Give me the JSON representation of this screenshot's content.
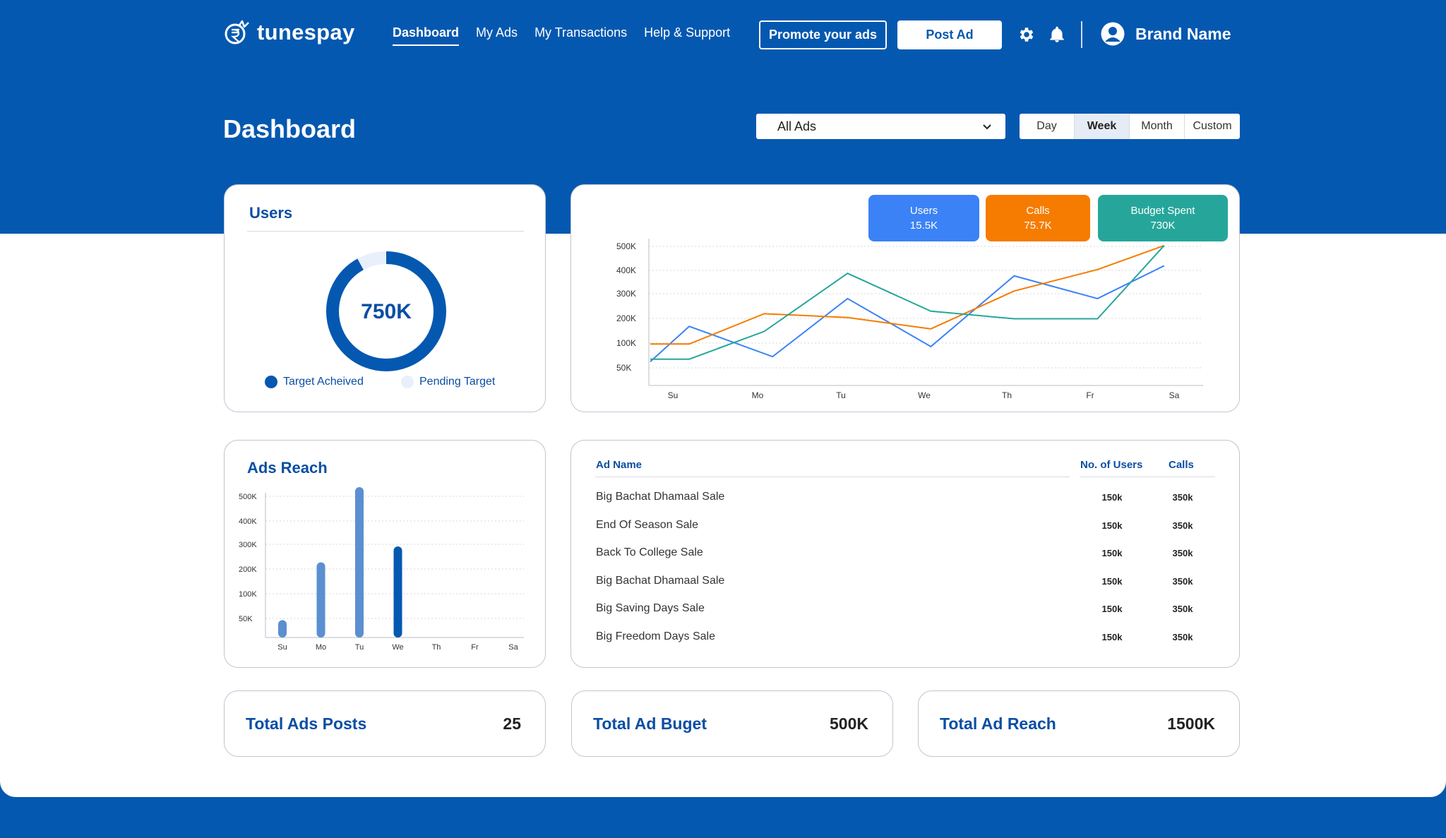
{
  "nav": {
    "logo_text": "tunespay",
    "links": [
      "Dashboard",
      "My Ads",
      "My Transactions",
      "Help & Support"
    ],
    "promote_label": "Promote your ads",
    "post_label": "Post Ad",
    "brand_name": "Brand Name"
  },
  "header": {
    "title": "Dashboard",
    "select_value": "All Ads",
    "ranges": [
      "Day",
      "Week",
      "Month",
      "Custom"
    ],
    "active_range": "Week"
  },
  "users_card": {
    "title": "Users",
    "center_value": "750K",
    "achieved_fraction": 0.92,
    "legend_achieved": "Target Acheived",
    "legend_pending": "Pending Target",
    "colors": {
      "achieved": "#0558b0",
      "pending": "#e8f0fb"
    }
  },
  "pills": [
    {
      "label": "Users",
      "value": "15.5K",
      "color": "#3b82f6"
    },
    {
      "label": "Calls",
      "value": "75.7K",
      "color": "#f57c00"
    },
    {
      "label": "Budget Spent",
      "value": "730K",
      "color": "#26a69a"
    }
  ],
  "chart_data": [
    {
      "type": "line",
      "categories": [
        "Su",
        "Mo",
        "Tu",
        "We",
        "Th",
        "Fr",
        "Sa"
      ],
      "y_ticks": [
        "500K",
        "400K",
        "300K",
        "200K",
        "100K",
        "50K"
      ],
      "grid": true,
      "series": [
        {
          "name": "Users",
          "color": "#3b82f6",
          "values": [
            [
              0,
              40
            ],
            [
              0.4,
              180
            ],
            [
              1.4,
              60
            ],
            [
              2.3,
              290
            ],
            [
              3.3,
              100
            ],
            [
              4.3,
              380
            ],
            [
              5.3,
              290
            ],
            [
              6.1,
              420
            ]
          ]
        },
        {
          "name": "Calls",
          "color": "#f57c00",
          "values": [
            [
              0,
              110
            ],
            [
              0.4,
              110
            ],
            [
              1.3,
              230
            ],
            [
              2.3,
              215
            ],
            [
              3.3,
              170
            ],
            [
              4.3,
              320
            ],
            [
              5.3,
              405
            ],
            [
              6.1,
              500
            ]
          ]
        },
        {
          "name": "Budget Spent",
          "color": "#26a69a",
          "values": [
            [
              0,
              50
            ],
            [
              0.4,
              50
            ],
            [
              1.3,
              160
            ],
            [
              2.3,
              390
            ],
            [
              3.3,
              240
            ],
            [
              4.3,
              210
            ],
            [
              5.3,
              210
            ],
            [
              6.1,
              500
            ]
          ]
        }
      ]
    },
    {
      "type": "bar",
      "title": "Ads Reach",
      "categories": [
        "Su",
        "Mo",
        "Tu",
        "We",
        "Th",
        "Fr",
        "Sa"
      ],
      "y_ticks": [
        "500K",
        "400K",
        "300K",
        "200K",
        "100K",
        "50K"
      ],
      "values": [
        60,
        260,
        520,
        315,
        0,
        0,
        0
      ],
      "colors": [
        "#5b8fd0",
        "#5b8fd0",
        "#5b8fd0",
        "#0558b0",
        "#5b8fd0",
        "#5b8fd0",
        "#5b8fd0"
      ],
      "grid": true
    }
  ],
  "table": {
    "headers": {
      "name": "Ad Name",
      "users": "No. of Users",
      "calls": "Calls"
    },
    "rows": [
      {
        "name": "Big Bachat Dhamaal Sale",
        "users": "150k",
        "calls": "350k"
      },
      {
        "name": "End Of Season Sale",
        "users": "150k",
        "calls": "350k"
      },
      {
        "name": "Back To College Sale",
        "users": "150k",
        "calls": "350k"
      },
      {
        "name": "Big Bachat Dhamaal Sale",
        "users": "150k",
        "calls": "350k"
      },
      {
        "name": "Big Saving Days Sale",
        "users": "150k",
        "calls": "350k"
      },
      {
        "name": "Big Freedom Days Sale",
        "users": "150k",
        "calls": "350k"
      }
    ]
  },
  "stats": [
    {
      "label": "Total Ads Posts",
      "value": "25"
    },
    {
      "label": "Total Ad Buget",
      "value": "500K"
    },
    {
      "label": "Total Ad Reach",
      "value": "1500K"
    }
  ]
}
